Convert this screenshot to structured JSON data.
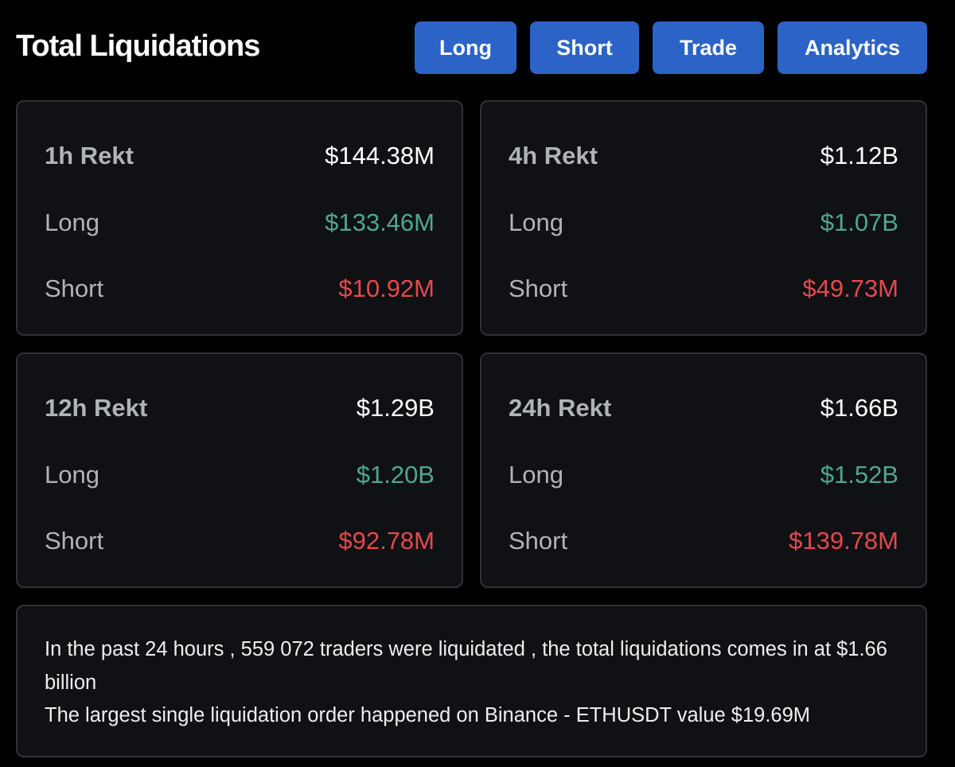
{
  "title": "Total Liquidations",
  "buttons": {
    "long": "Long",
    "short": "Short",
    "trade": "Trade",
    "analytics": "Analytics"
  },
  "labels": {
    "long": "Long",
    "short": "Short"
  },
  "cards": [
    {
      "period": "1h Rekt",
      "total": "$144.38M",
      "long": "$133.46M",
      "short": "$10.92M"
    },
    {
      "period": "4h Rekt",
      "total": "$1.12B",
      "long": "$1.07B",
      "short": "$49.73M"
    },
    {
      "period": "12h Rekt",
      "total": "$1.29B",
      "long": "$1.20B",
      "short": "$92.78M"
    },
    {
      "period": "24h Rekt",
      "total": "$1.66B",
      "long": "$1.52B",
      "short": "$139.78M"
    }
  ],
  "summary": {
    "line1": "In the past 24 hours , 559 072 traders were liquidated , the total liquidations comes in at $1.66 billion",
    "line2": "The largest single liquidation order happened on Binance - ETHUSDT value $19.69M"
  },
  "colors": {
    "background": "#000000",
    "card_background": "#0f1114",
    "card_border": "#2e3238",
    "button": "#2b64c6",
    "long": "#4fa88d",
    "short": "#e5484d",
    "label": "#b0b3b8"
  }
}
